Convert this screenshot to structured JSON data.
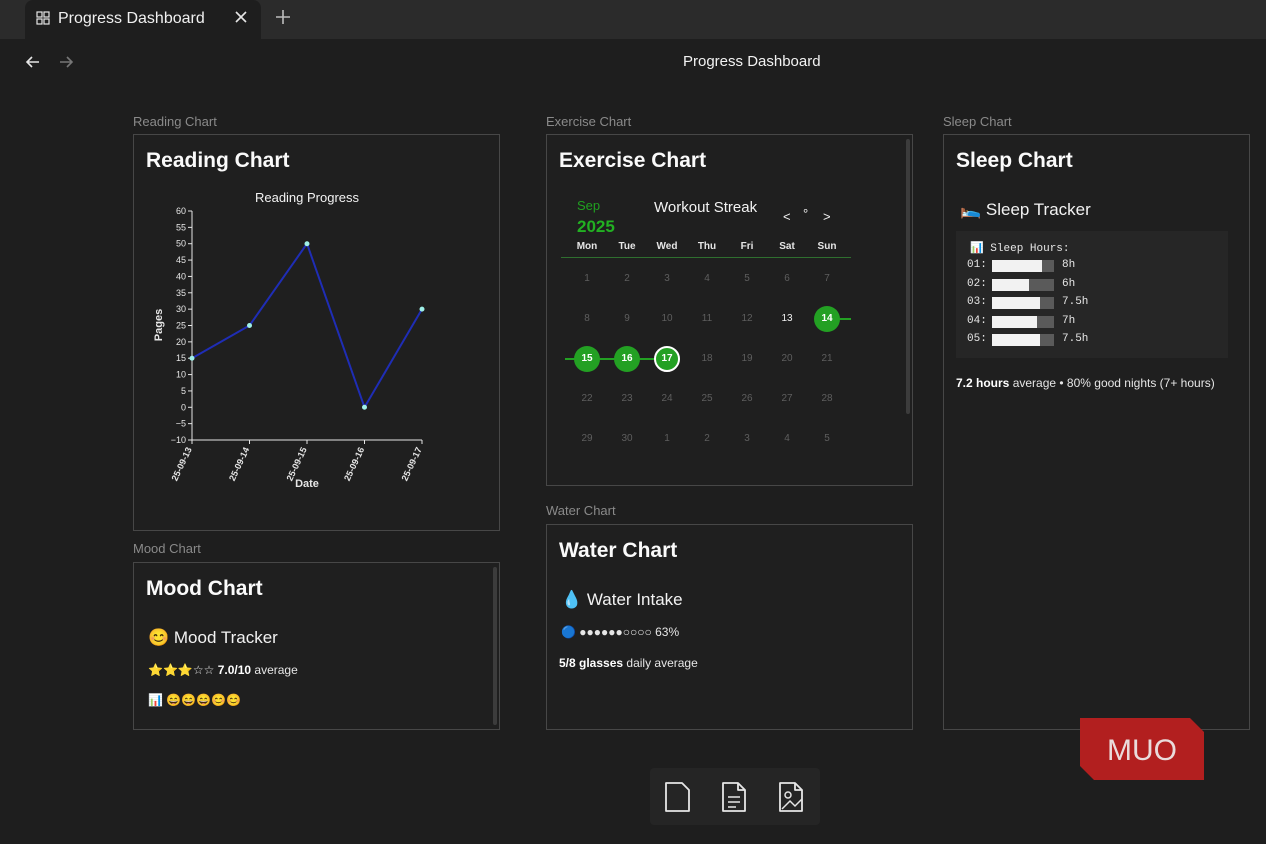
{
  "tab": {
    "title": "Progress Dashboard",
    "icon": "grid-icon"
  },
  "page": {
    "title": "Progress Dashboard"
  },
  "reading": {
    "label": "Reading Chart",
    "title": "Reading Chart",
    "chart_title": "Reading Progress",
    "ylabel": "Pages",
    "xlabel": "Date"
  },
  "exercise": {
    "label": "Exercise Chart",
    "title": "Exercise Chart",
    "month": "Sep",
    "year": "2025",
    "heading": "Workout Streak",
    "prev": "<",
    "dot": "°",
    "next": ">",
    "weekdays": [
      "Mon",
      "Tue",
      "Wed",
      "Thu",
      "Fri",
      "Sat",
      "Sun"
    ],
    "weeks": [
      [
        "1",
        "2",
        "3",
        "4",
        "5",
        "6",
        "7"
      ],
      [
        "8",
        "9",
        "10",
        "11",
        "12",
        "13",
        "14"
      ],
      [
        "15",
        "16",
        "17",
        "18",
        "19",
        "20",
        "21"
      ],
      [
        "22",
        "23",
        "24",
        "25",
        "26",
        "27",
        "28"
      ],
      [
        "29",
        "30",
        "1",
        "2",
        "3",
        "4",
        "5"
      ]
    ],
    "workout_days": [
      "14",
      "15",
      "16",
      "17"
    ],
    "today": "17",
    "current_days": [
      "13"
    ]
  },
  "sleep": {
    "label": "Sleep Chart",
    "title": "Sleep Chart",
    "subtitle": "🛌 Sleep Tracker",
    "box_title": "📊 Sleep Hours:",
    "rows": [
      {
        "day": "01:",
        "value": "8h",
        "fraction": 0.8
      },
      {
        "day": "02:",
        "value": "6h",
        "fraction": 0.6
      },
      {
        "day": "03:",
        "value": "7.5h",
        "fraction": 0.78
      },
      {
        "day": "04:",
        "value": "7h",
        "fraction": 0.72
      },
      {
        "day": "05:",
        "value": "7.5h",
        "fraction": 0.78
      }
    ],
    "summary_bold": "7.2 hours",
    "summary_rest": " average • 80% good nights (7+ hours)"
  },
  "mood": {
    "label": "Mood Chart",
    "title": "Mood Chart",
    "subtitle": "😊 Mood Tracker",
    "stars": "⭐⭐⭐☆☆",
    "rating_bold": "7.0/10",
    "rating_rest": " average",
    "emoji_row": "📊 😄😄😄😊😊"
  },
  "water": {
    "label": "Water Chart",
    "title": "Water Chart",
    "subtitle": "💧 Water Intake",
    "progress_text": "🔵 ●●●●●●○○○○ 63%",
    "summary_bold": "5/8 glasses",
    "summary_rest": " daily average"
  },
  "toolbar": {
    "icons": [
      "file-icon",
      "document-icon",
      "image-file-icon"
    ]
  },
  "watermark": {
    "text": "MUO"
  },
  "colors": {
    "accent_green": "#23a023",
    "line_blue": "#1f2db5",
    "point_cyan": "#9ff0e8"
  },
  "chart_data": {
    "type": "line",
    "title": "Reading Progress",
    "xlabel": "Date",
    "ylabel": "Pages",
    "x": [
      "25-09-13",
      "25-09-14",
      "25-09-15",
      "25-09-16",
      "25-09-17"
    ],
    "values": [
      15,
      25,
      50,
      0,
      30
    ],
    "ylim": [
      -10,
      60
    ],
    "yticks": [
      -10,
      -5,
      0,
      5,
      10,
      15,
      20,
      25,
      30,
      35,
      40,
      45,
      50,
      55,
      60
    ]
  }
}
